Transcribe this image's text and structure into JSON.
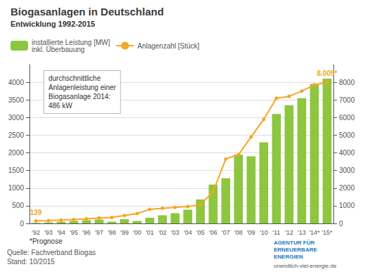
{
  "chart_data": {
    "type": "bar",
    "title": "Biogasanlagen in Deutschland",
    "subtitle": "Entwicklung 1992-2015",
    "categories": [
      "'92",
      "'93",
      "'94",
      "'95",
      "'96",
      "'97",
      "'98",
      "'99",
      "'00",
      "'01",
      "'02",
      "'03",
      "'04",
      "'05",
      "'06",
      "'07",
      "'08",
      "'09",
      "'10",
      "'11",
      "'12",
      "'13",
      "'14*",
      "'15*"
    ],
    "series": [
      {
        "name": "installierte Leistung [MW]\ninkl. Überbauung",
        "type": "bar",
        "color": "#8dc63f",
        "values": [
          15,
          30,
          50,
          70,
          90,
          110,
          50,
          120,
          70,
          160,
          230,
          290,
          390,
          680,
          1100,
          1280,
          1950,
          1900,
          2300,
          3100,
          3350,
          3550,
          3950,
          4100
        ]
      },
      {
        "name": "Anlagenzahl [Stück]",
        "type": "line",
        "axis": "y2",
        "color": "#f5a623",
        "marker": "circle",
        "values": [
          139,
          160,
          190,
          220,
          260,
          310,
          340,
          450,
          560,
          800,
          860,
          910,
          960,
          1060,
          1800,
          3650,
          3900,
          4900,
          5900,
          7100,
          7200,
          7500,
          7850,
          8005
        ],
        "value_labels": [
          "139",
          null,
          null,
          null,
          null,
          null,
          null,
          null,
          null,
          null,
          null,
          null,
          null,
          null,
          null,
          null,
          null,
          null,
          null,
          null,
          null,
          null,
          null,
          "8.005*"
        ]
      }
    ],
    "ylim": [
      0,
      4500
    ],
    "yticks": [
      0,
      500,
      1000,
      1500,
      2000,
      2500,
      3000,
      3500,
      4000
    ],
    "y2lim": [
      0,
      9000
    ],
    "y2ticks": [
      0,
      1000,
      2000,
      3000,
      4000,
      5000,
      6000,
      7000,
      8000
    ],
    "grid": true,
    "legend": "top",
    "annotations": [
      "durchschnittliche\nAnlagenleistung einer\nBiogasanlage 2014:\n486 kW",
      "*Prognose",
      "Quelle: Fachverband Biogas\nStand: 10/2015",
      "AGENTUR FÜR\nERNEUERBARE\nENERGIEN",
      "unendlich-viel-energie.de"
    ]
  }
}
